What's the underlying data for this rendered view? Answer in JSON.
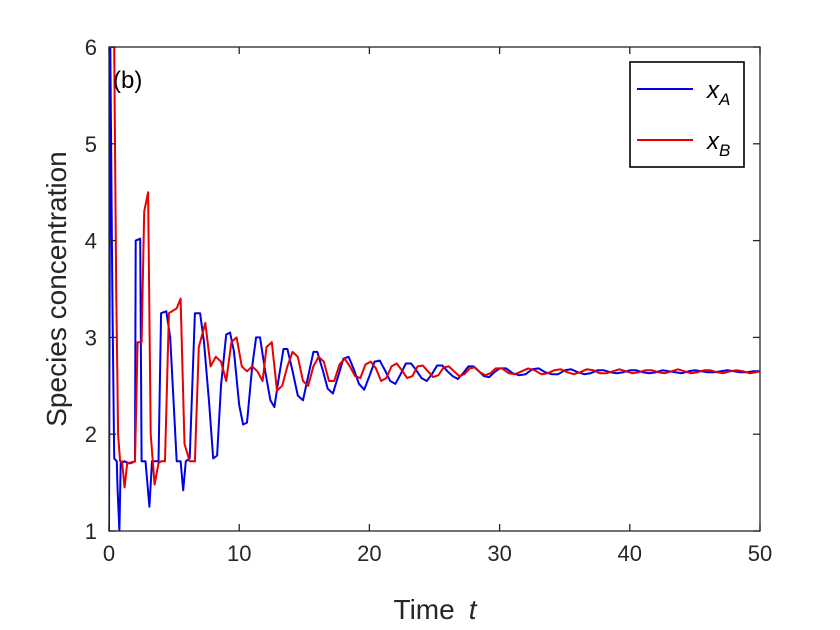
{
  "chart_data": {
    "type": "line",
    "panel_label": "(b)",
    "xlabel": "Time",
    "xlabel_var": "t",
    "ylabel": "Species concentration",
    "xlim": [
      0,
      50
    ],
    "ylim": [
      1,
      6
    ],
    "xticks": [
      0,
      10,
      20,
      30,
      40,
      50
    ],
    "yticks": [
      1,
      2,
      3,
      4,
      5,
      6
    ],
    "legend_position": "top-right",
    "series": [
      {
        "name": "x",
        "subscript": "A",
        "color": "#0000e6",
        "points": [
          [
            0,
            1.0
          ],
          [
            0.1,
            6.0
          ],
          [
            0.25,
            3.5
          ],
          [
            0.4,
            1.75
          ],
          [
            0.6,
            1.72
          ],
          [
            0.65,
            1.45
          ],
          [
            0.8,
            1.0
          ],
          [
            0.9,
            1.7
          ],
          [
            1.2,
            1.72
          ],
          [
            1.5,
            1.7
          ],
          [
            2.0,
            1.72
          ],
          [
            2.05,
            4.0
          ],
          [
            2.4,
            4.02
          ],
          [
            2.5,
            1.72
          ],
          [
            2.8,
            1.72
          ],
          [
            3.1,
            1.25
          ],
          [
            3.3,
            1.72
          ],
          [
            3.5,
            1.72
          ],
          [
            3.8,
            1.72
          ],
          [
            4.0,
            3.25
          ],
          [
            4.4,
            3.27
          ],
          [
            4.7,
            3.0
          ],
          [
            5.2,
            1.72
          ],
          [
            5.5,
            1.72
          ],
          [
            5.7,
            1.42
          ],
          [
            5.9,
            1.72
          ],
          [
            6.2,
            1.75
          ],
          [
            6.6,
            3.25
          ],
          [
            7.0,
            3.25
          ],
          [
            7.3,
            2.95
          ],
          [
            7.7,
            2.3
          ],
          [
            8.0,
            1.75
          ],
          [
            8.3,
            1.78
          ],
          [
            8.6,
            2.5
          ],
          [
            9.0,
            3.03
          ],
          [
            9.3,
            3.05
          ],
          [
            9.6,
            2.85
          ],
          [
            10.0,
            2.3
          ],
          [
            10.3,
            2.1
          ],
          [
            10.6,
            2.12
          ],
          [
            11.0,
            2.7
          ],
          [
            11.3,
            3.0
          ],
          [
            11.6,
            3.0
          ],
          [
            12.0,
            2.65
          ],
          [
            12.4,
            2.35
          ],
          [
            12.7,
            2.28
          ],
          [
            13.0,
            2.55
          ],
          [
            13.4,
            2.88
          ],
          [
            13.7,
            2.88
          ],
          [
            14.1,
            2.65
          ],
          [
            14.5,
            2.4
          ],
          [
            14.9,
            2.35
          ],
          [
            15.3,
            2.6
          ],
          [
            15.7,
            2.85
          ],
          [
            16.0,
            2.85
          ],
          [
            16.4,
            2.67
          ],
          [
            16.8,
            2.47
          ],
          [
            17.2,
            2.42
          ],
          [
            17.6,
            2.6
          ],
          [
            18.0,
            2.78
          ],
          [
            18.4,
            2.8
          ],
          [
            18.8,
            2.67
          ],
          [
            19.2,
            2.52
          ],
          [
            19.6,
            2.46
          ],
          [
            20.0,
            2.6
          ],
          [
            20.4,
            2.75
          ],
          [
            20.8,
            2.76
          ],
          [
            21.2,
            2.66
          ],
          [
            21.6,
            2.55
          ],
          [
            22.0,
            2.52
          ],
          [
            22.4,
            2.62
          ],
          [
            22.8,
            2.73
          ],
          [
            23.2,
            2.73
          ],
          [
            23.6,
            2.66
          ],
          [
            24.0,
            2.58
          ],
          [
            24.4,
            2.55
          ],
          [
            24.8,
            2.62
          ],
          [
            25.2,
            2.71
          ],
          [
            25.6,
            2.71
          ],
          [
            26.0,
            2.65
          ],
          [
            26.4,
            2.6
          ],
          [
            26.8,
            2.57
          ],
          [
            27.2,
            2.63
          ],
          [
            27.6,
            2.7
          ],
          [
            28.0,
            2.7
          ],
          [
            28.4,
            2.65
          ],
          [
            28.8,
            2.6
          ],
          [
            29.2,
            2.59
          ],
          [
            29.6,
            2.64
          ],
          [
            30.0,
            2.68
          ],
          [
            30.5,
            2.68
          ],
          [
            31.0,
            2.63
          ],
          [
            31.5,
            2.61
          ],
          [
            32.0,
            2.62
          ],
          [
            32.5,
            2.67
          ],
          [
            33.0,
            2.68
          ],
          [
            33.5,
            2.64
          ],
          [
            34.0,
            2.62
          ],
          [
            34.5,
            2.62
          ],
          [
            35.0,
            2.66
          ],
          [
            35.5,
            2.67
          ],
          [
            36.0,
            2.64
          ],
          [
            36.5,
            2.62
          ],
          [
            37.0,
            2.63
          ],
          [
            37.5,
            2.66
          ],
          [
            38.0,
            2.66
          ],
          [
            38.5,
            2.64
          ],
          [
            39.0,
            2.63
          ],
          [
            39.5,
            2.64
          ],
          [
            40.0,
            2.66
          ],
          [
            40.5,
            2.66
          ],
          [
            41.0,
            2.64
          ],
          [
            41.5,
            2.63
          ],
          [
            42.0,
            2.64
          ],
          [
            42.5,
            2.66
          ],
          [
            43.0,
            2.65
          ],
          [
            43.5,
            2.64
          ],
          [
            44.0,
            2.63
          ],
          [
            44.5,
            2.65
          ],
          [
            45.0,
            2.66
          ],
          [
            45.5,
            2.65
          ],
          [
            46.0,
            2.64
          ],
          [
            46.5,
            2.64
          ],
          [
            47.0,
            2.65
          ],
          [
            47.5,
            2.66
          ],
          [
            48.0,
            2.65
          ],
          [
            48.5,
            2.64
          ],
          [
            49.0,
            2.64
          ],
          [
            49.5,
            2.65
          ],
          [
            50.0,
            2.65
          ]
        ]
      },
      {
        "name": "x",
        "subscript": "B",
        "color": "#e60000",
        "points": [
          [
            0,
            6.0
          ],
          [
            0.2,
            6.0
          ],
          [
            0.4,
            6.0
          ],
          [
            0.55,
            3.5
          ],
          [
            0.7,
            2.0
          ],
          [
            0.85,
            1.72
          ],
          [
            1.0,
            1.72
          ],
          [
            1.2,
            1.45
          ],
          [
            1.4,
            1.7
          ],
          [
            1.7,
            1.7
          ],
          [
            2.0,
            1.72
          ],
          [
            2.2,
            2.95
          ],
          [
            2.5,
            2.95
          ],
          [
            2.7,
            4.3
          ],
          [
            3.0,
            4.5
          ],
          [
            3.2,
            2.0
          ],
          [
            3.5,
            1.48
          ],
          [
            3.8,
            1.7
          ],
          [
            4.0,
            1.72
          ],
          [
            4.3,
            1.72
          ],
          [
            4.6,
            3.25
          ],
          [
            5.2,
            3.3
          ],
          [
            5.5,
            3.4
          ],
          [
            5.8,
            1.9
          ],
          [
            6.2,
            1.72
          ],
          [
            6.6,
            1.72
          ],
          [
            6.9,
            2.9
          ],
          [
            7.4,
            3.15
          ],
          [
            7.8,
            2.7
          ],
          [
            8.2,
            2.8
          ],
          [
            8.6,
            2.75
          ],
          [
            9.0,
            2.55
          ],
          [
            9.4,
            2.95
          ],
          [
            9.8,
            3.0
          ],
          [
            10.2,
            2.7
          ],
          [
            10.6,
            2.65
          ],
          [
            11.0,
            2.7
          ],
          [
            11.4,
            2.65
          ],
          [
            11.8,
            2.55
          ],
          [
            12.1,
            2.9
          ],
          [
            12.5,
            2.95
          ],
          [
            12.9,
            2.45
          ],
          [
            13.3,
            2.5
          ],
          [
            13.7,
            2.7
          ],
          [
            14.1,
            2.85
          ],
          [
            14.5,
            2.8
          ],
          [
            14.9,
            2.55
          ],
          [
            15.3,
            2.5
          ],
          [
            15.7,
            2.7
          ],
          [
            16.1,
            2.8
          ],
          [
            16.5,
            2.75
          ],
          [
            16.9,
            2.55
          ],
          [
            17.3,
            2.55
          ],
          [
            17.7,
            2.72
          ],
          [
            18.1,
            2.78
          ],
          [
            18.5,
            2.7
          ],
          [
            18.9,
            2.6
          ],
          [
            19.3,
            2.58
          ],
          [
            19.7,
            2.72
          ],
          [
            20.1,
            2.75
          ],
          [
            20.5,
            2.68
          ],
          [
            20.9,
            2.55
          ],
          [
            21.3,
            2.58
          ],
          [
            21.7,
            2.7
          ],
          [
            22.1,
            2.73
          ],
          [
            22.5,
            2.66
          ],
          [
            22.9,
            2.58
          ],
          [
            23.3,
            2.6
          ],
          [
            23.7,
            2.7
          ],
          [
            24.1,
            2.71
          ],
          [
            24.5,
            2.65
          ],
          [
            24.9,
            2.59
          ],
          [
            25.3,
            2.61
          ],
          [
            25.7,
            2.69
          ],
          [
            26.1,
            2.7
          ],
          [
            26.5,
            2.65
          ],
          [
            26.9,
            2.6
          ],
          [
            27.3,
            2.62
          ],
          [
            27.7,
            2.68
          ],
          [
            28.1,
            2.69
          ],
          [
            28.5,
            2.64
          ],
          [
            28.9,
            2.61
          ],
          [
            29.3,
            2.63
          ],
          [
            29.7,
            2.68
          ],
          [
            30.2,
            2.68
          ],
          [
            30.7,
            2.63
          ],
          [
            31.2,
            2.62
          ],
          [
            31.7,
            2.65
          ],
          [
            32.2,
            2.68
          ],
          [
            32.7,
            2.66
          ],
          [
            33.2,
            2.62
          ],
          [
            33.7,
            2.63
          ],
          [
            34.2,
            2.66
          ],
          [
            34.7,
            2.67
          ],
          [
            35.2,
            2.64
          ],
          [
            35.7,
            2.62
          ],
          [
            36.2,
            2.64
          ],
          [
            36.7,
            2.67
          ],
          [
            37.2,
            2.66
          ],
          [
            37.7,
            2.63
          ],
          [
            38.2,
            2.63
          ],
          [
            38.7,
            2.65
          ],
          [
            39.2,
            2.67
          ],
          [
            39.7,
            2.65
          ],
          [
            40.2,
            2.63
          ],
          [
            40.7,
            2.64
          ],
          [
            41.2,
            2.66
          ],
          [
            41.7,
            2.66
          ],
          [
            42.2,
            2.64
          ],
          [
            42.7,
            2.63
          ],
          [
            43.2,
            2.65
          ],
          [
            43.7,
            2.67
          ],
          [
            44.2,
            2.65
          ],
          [
            44.7,
            2.63
          ],
          [
            45.2,
            2.64
          ],
          [
            45.7,
            2.66
          ],
          [
            46.2,
            2.66
          ],
          [
            46.7,
            2.64
          ],
          [
            47.2,
            2.63
          ],
          [
            47.7,
            2.65
          ],
          [
            48.2,
            2.66
          ],
          [
            48.7,
            2.65
          ],
          [
            49.2,
            2.63
          ],
          [
            49.7,
            2.64
          ],
          [
            50.0,
            2.65
          ]
        ]
      }
    ]
  }
}
